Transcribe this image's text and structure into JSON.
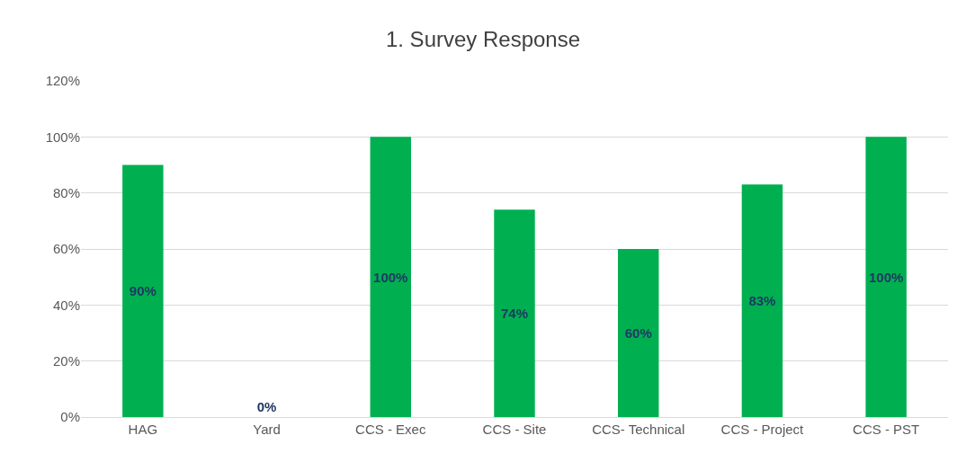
{
  "chart_data": {
    "type": "bar",
    "title": "1. Survey Response",
    "categories": [
      "HAG",
      "Yard",
      "CCS - Exec",
      "CCS - Site",
      "CCS- Technical",
      "CCS - Project",
      "CCS - PST"
    ],
    "values": [
      90,
      0,
      100,
      74,
      60,
      83,
      100
    ],
    "value_labels": [
      "90%",
      "0%",
      "100%",
      "74%",
      "60%",
      "83%",
      "100%"
    ],
    "color": "#00b050",
    "ylim": [
      0,
      120
    ],
    "yticks": [
      {
        "value": 0,
        "label": "0%"
      },
      {
        "value": 20,
        "label": "20%"
      },
      {
        "value": 40,
        "label": "40%"
      },
      {
        "value": 60,
        "label": "60%"
      },
      {
        "value": 80,
        "label": "80%"
      },
      {
        "value": 100,
        "label": "100%"
      },
      {
        "value": 120,
        "label": "120%"
      }
    ],
    "grid": "y"
  }
}
